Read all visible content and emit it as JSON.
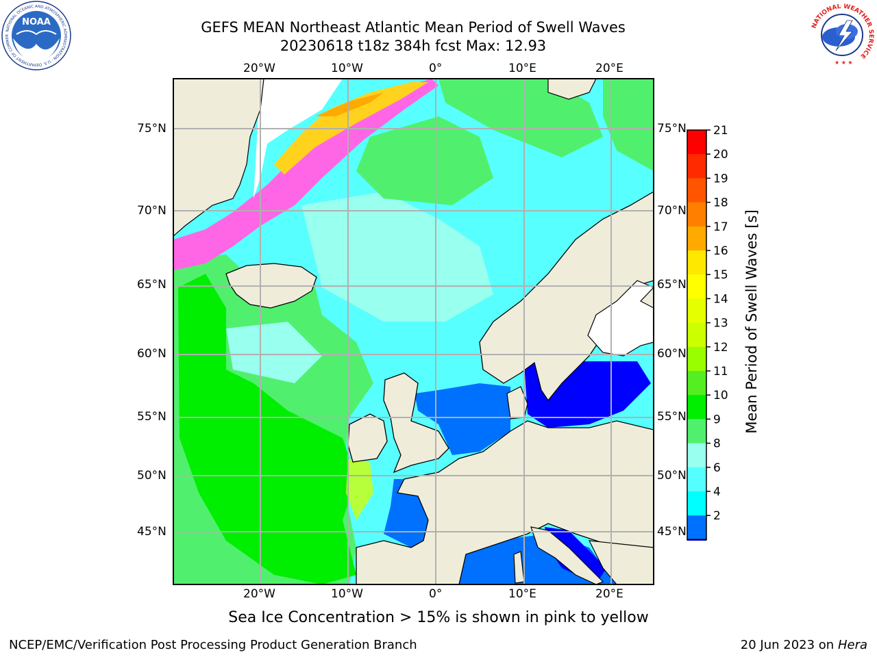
{
  "header": {
    "title_line1": "GEFS MEAN Northeast Atlantic Mean Period of Swell Waves",
    "title_line2": "20230618 t18z 384h fcst   Max: 12.93"
  },
  "logos": {
    "left_text": "NOAA",
    "left_ring_text": "NATIONAL OCEANIC AND ATMOSPHERIC ADMINISTRATION · U.S. DEPARTMENT OF COMMERCE",
    "right_ring_text": "NATIONAL WEATHER SERVICE"
  },
  "map": {
    "lon_labels": [
      "20°W",
      "10°W",
      "0°",
      "10°E",
      "20°E"
    ],
    "lat_labels": [
      "75°N",
      "70°N",
      "65°N",
      "60°N",
      "55°N",
      "50°N",
      "45°N"
    ],
    "colors": {
      "land": "#efedda",
      "ocean_green": "#29e629",
      "ocean_cyan": "#58ffff",
      "ice_pink": "#ff66e6",
      "ice_yellow": "#ffd21e"
    }
  },
  "colorbar": {
    "label": "Mean Period of Swell Waves [s]",
    "ticks": [
      "21",
      "20",
      "19",
      "18",
      "17",
      "16",
      "15",
      "14",
      "13",
      "12",
      "11",
      "10",
      "9",
      "8",
      "6",
      "4",
      "2"
    ],
    "colors": [
      "#ff0000",
      "#ff2a00",
      "#ff5500",
      "#ff8000",
      "#ffaa00",
      "#ffe800",
      "#ffff00",
      "#e6ff00",
      "#ccff00",
      "#99ff00",
      "#55ee22",
      "#00ee00",
      "#50f06e",
      "#99ffee",
      "#55ffff",
      "#00ffff",
      "#0070ff"
    ],
    "underflow_color": "#0000ff"
  },
  "bottom_note": "Sea Ice Concentration > 15% is shown in pink to yellow",
  "footer": {
    "left": "NCEP/EMC/Verification Post Processing Product Generation Branch",
    "right_prefix": "20 Jun 2023 on",
    "right_host": "Hera"
  }
}
